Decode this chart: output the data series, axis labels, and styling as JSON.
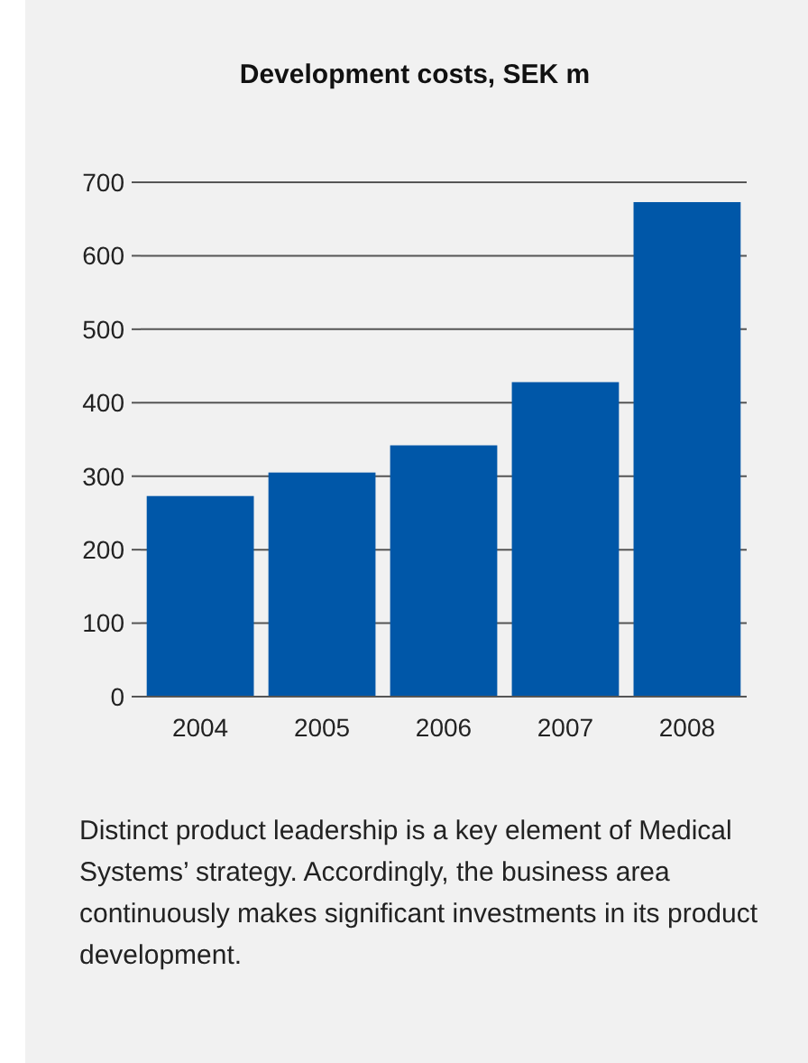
{
  "chart_data": {
    "type": "bar",
    "title": "Development costs, SEK m",
    "categories": [
      "2004",
      "2005",
      "2006",
      "2007",
      "2008"
    ],
    "values": [
      273,
      305,
      342,
      428,
      673
    ],
    "color": "#0057a8",
    "ylim": [
      0,
      700
    ],
    "yticks": [
      0,
      100,
      200,
      300,
      400,
      500,
      600,
      700
    ],
    "grid": "y",
    "annotations": [
      "Distinct product leadership is a key element of Medical Systems’ strategy. Accordingly, the business area continuously makes significant investments in its product development."
    ]
  }
}
